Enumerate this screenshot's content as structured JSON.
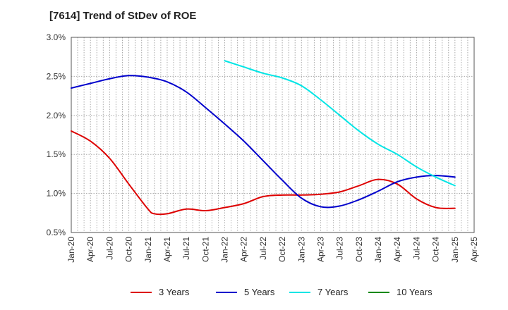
{
  "chart_data": {
    "type": "line",
    "title": "[7614]  Trend of StDev of ROE",
    "xlabel": "",
    "ylabel": "",
    "x_ticks": [
      "Jan-20",
      "Apr-20",
      "Jul-20",
      "Oct-20",
      "Jan-21",
      "Apr-21",
      "Jul-21",
      "Oct-21",
      "Jan-22",
      "Apr-22",
      "Jul-22",
      "Oct-22",
      "Jan-23",
      "Apr-23",
      "Jul-23",
      "Oct-23",
      "Jan-24",
      "Apr-24",
      "Jul-24",
      "Oct-24",
      "Jan-25",
      "Apr-25"
    ],
    "y_ticks": [
      "0.5%",
      "1.0%",
      "1.5%",
      "2.0%",
      "2.5%",
      "3.0%"
    ],
    "ylim": [
      0.5,
      3.0
    ],
    "grid": true,
    "legend_position": "bottom",
    "series": [
      {
        "name": "3 Years",
        "color": "#dd0000",
        "points": [
          [
            "Jan-20",
            1.8
          ],
          [
            "Apr-20",
            1.67
          ],
          [
            "Jul-20",
            1.45
          ],
          [
            "Oct-20",
            1.12
          ],
          [
            "Jan-21",
            0.8
          ],
          [
            "Feb-21",
            0.74
          ],
          [
            "Apr-21",
            0.74
          ],
          [
            "Jul-21",
            0.8
          ],
          [
            "Oct-21",
            0.78
          ],
          [
            "Jan-22",
            0.82
          ],
          [
            "Apr-22",
            0.87
          ],
          [
            "Jul-22",
            0.96
          ],
          [
            "Oct-22",
            0.98
          ],
          [
            "Jan-23",
            0.98
          ],
          [
            "Apr-23",
            0.99
          ],
          [
            "Jul-23",
            1.02
          ],
          [
            "Oct-23",
            1.1
          ],
          [
            "Jan-24",
            1.18
          ],
          [
            "Apr-24",
            1.12
          ],
          [
            "Jul-24",
            0.93
          ],
          [
            "Oct-24",
            0.82
          ],
          [
            "Jan-25",
            0.81
          ]
        ]
      },
      {
        "name": "5 Years",
        "color": "#0000cc",
        "points": [
          [
            "Jan-20",
            2.35
          ],
          [
            "Apr-20",
            2.41
          ],
          [
            "Jul-20",
            2.47
          ],
          [
            "Oct-20",
            2.51
          ],
          [
            "Jan-21",
            2.49
          ],
          [
            "Apr-21",
            2.43
          ],
          [
            "Jul-21",
            2.3
          ],
          [
            "Oct-21",
            2.1
          ],
          [
            "Jan-22",
            1.89
          ],
          [
            "Apr-22",
            1.67
          ],
          [
            "Jul-22",
            1.42
          ],
          [
            "Oct-22",
            1.17
          ],
          [
            "Jan-23",
            0.94
          ],
          [
            "Apr-23",
            0.83
          ],
          [
            "Jul-23",
            0.84
          ],
          [
            "Oct-23",
            0.92
          ],
          [
            "Jan-24",
            1.03
          ],
          [
            "Apr-24",
            1.15
          ],
          [
            "Jul-24",
            1.21
          ],
          [
            "Oct-24",
            1.23
          ],
          [
            "Jan-25",
            1.21
          ]
        ]
      },
      {
        "name": "7 Years",
        "color": "#00e5e5",
        "points": [
          [
            "Jan-22",
            2.7
          ],
          [
            "Apr-22",
            2.62
          ],
          [
            "Jul-22",
            2.54
          ],
          [
            "Oct-22",
            2.48
          ],
          [
            "Jan-23",
            2.38
          ],
          [
            "Apr-23",
            2.2
          ],
          [
            "Jul-23",
            2.0
          ],
          [
            "Oct-23",
            1.8
          ],
          [
            "Jan-24",
            1.63
          ],
          [
            "Apr-24",
            1.5
          ],
          [
            "Jul-24",
            1.34
          ],
          [
            "Oct-24",
            1.21
          ],
          [
            "Jan-25",
            1.1
          ]
        ]
      },
      {
        "name": "10 Years",
        "color": "#008800",
        "points": []
      }
    ]
  }
}
